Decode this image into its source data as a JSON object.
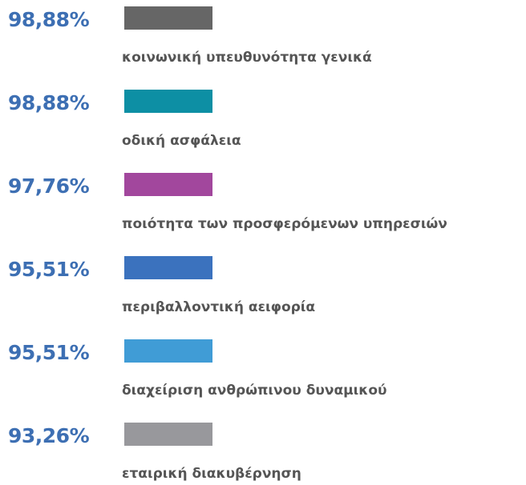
{
  "items": [
    {
      "percent": "98,88%",
      "label": "κοινωνική υπευθυνότητα γενικά",
      "color": "#666666"
    },
    {
      "percent": "98,88%",
      "label": "οδική ασφάλεια",
      "color": "#0d8fa4"
    },
    {
      "percent": "97,76%",
      "label": "ποιότητα των προσφερόμενων υπηρεσιών",
      "color": "#a2479d"
    },
    {
      "percent": "95,51%",
      "label": "περιβαλλοντική αειφορία",
      "color": "#3b72be"
    },
    {
      "percent": "95,51%",
      "label": "διαχείριση ανθρώπινου δυναμικού",
      "color": "#409cd6"
    },
    {
      "percent": "93,26%",
      "label": "εταιρική διακυβέρνηση",
      "color": "#98989c"
    }
  ]
}
